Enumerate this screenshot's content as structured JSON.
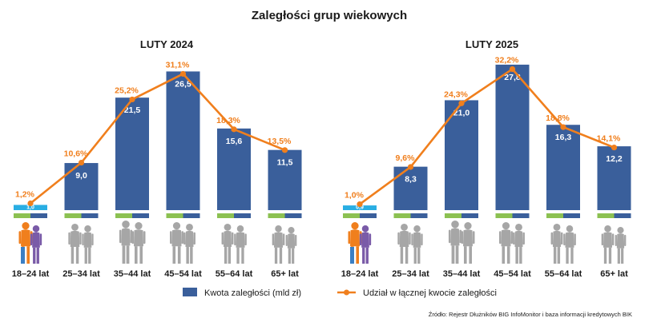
{
  "title": "Zaległości grup wiekowych",
  "colors": {
    "bar": "#3a5f9b",
    "bar_highlight": "#29aee3",
    "line": "#f07f1d",
    "strip_green": "#8cc152",
    "strip_blue": "#3a5f9b",
    "people_gray": "#a6a6a6",
    "people_orange": "#f07f1d",
    "people_purple": "#7a5ba8",
    "people_blue": "#3b7fc4"
  },
  "legend": {
    "bars": "Kwota zaległości (mld zł)",
    "line": "Udział w łącznej kwocie zaległości"
  },
  "source": "Źródło: Rejestr Dłużników BIG InfoMonitor i baza informacji kredytowych BIK",
  "chart_data": [
    {
      "type": "bar",
      "title": "LUTY 2024",
      "categories": [
        "18–24 lat",
        "25–34 lat",
        "35–44 lat",
        "45–54 lat",
        "55–64 lat",
        "65+ lat"
      ],
      "series": [
        {
          "name": "Kwota zaległości (mld zł)",
          "type": "bar",
          "values": [
            1.0,
            9.0,
            21.5,
            26.5,
            15.6,
            11.5
          ],
          "labels": [
            "1,0",
            "9,0",
            "21,5",
            "26,5",
            "15,6",
            "11,5"
          ]
        },
        {
          "name": "Udział w łącznej kwocie zaległości",
          "type": "line",
          "values": [
            1.2,
            10.6,
            25.2,
            31.1,
            18.3,
            13.5
          ],
          "labels": [
            "1,2%",
            "10,6%",
            "25,2%",
            "31,1%",
            "18,3%",
            "13,5%"
          ]
        }
      ]
    },
    {
      "type": "bar",
      "title": "LUTY 2025",
      "categories": [
        "18–24 lat",
        "25–34 lat",
        "35–44 lat",
        "45–54 lat",
        "55–64 lat",
        "65+ lat"
      ],
      "series": [
        {
          "name": "Kwota zaległości (mld zł)",
          "type": "bar",
          "values": [
            0.9,
            8.3,
            21.0,
            27.8,
            16.3,
            12.2
          ],
          "labels": [
            "0,9",
            "8,3",
            "21,0",
            "27,8",
            "16,3",
            "12,2"
          ]
        },
        {
          "name": "Udział w łącznej kwocie zaległości",
          "type": "line",
          "values": [
            1.0,
            9.6,
            24.3,
            32.2,
            18.8,
            14.1
          ],
          "labels": [
            "1,0%",
            "9,6%",
            "24,3%",
            "32,2%",
            "18,8%",
            "14,1%"
          ]
        }
      ]
    }
  ]
}
